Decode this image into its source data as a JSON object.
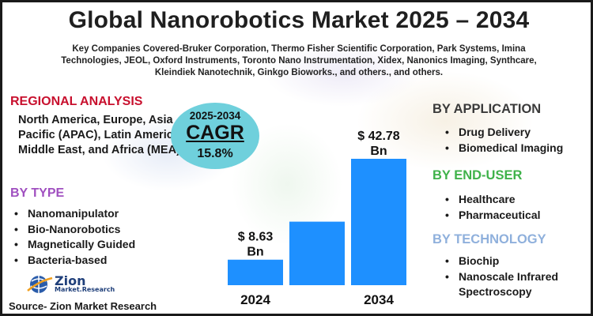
{
  "title": "Global Nanorobotics Market 2025 – 2034",
  "subtitle": "Key Companies Covered-Bruker Corporation, Thermo Fisher Scientific Corporation, Park Systems, Imina Technologies, JEOL, Oxford Instruments, Toronto Nano Instrumentation, Xidex, Nanonics Imaging, Synthcare, Kleindiek Nanotechnik, Ginkgo Bioworks., and others., and others.",
  "regional": {
    "title": "REGIONAL ANALYSIS",
    "body": "North America, Europe, Asia Pacific (APAC), Latin America, Middle East, and Africa (MEA)"
  },
  "by_type": {
    "title": "BY TYPE",
    "items": [
      "Nanomanipulator",
      "Bio-Nanorobotics",
      "Magnetically Guided",
      "Bacteria-based"
    ]
  },
  "by_application": {
    "title": "BY APPLICATION",
    "items": [
      "Drug Delivery",
      "Biomedical Imaging"
    ]
  },
  "by_end_user": {
    "title": "BY END-USER",
    "items": [
      "Healthcare",
      "Pharmaceutical"
    ]
  },
  "by_technology": {
    "title": "BY TECHNOLOGY",
    "items": [
      "Biochip",
      "Nanoscale Infrared Spectroscopy"
    ]
  },
  "cagr": {
    "years": "2025-2034",
    "label": "CAGR",
    "value": "15.8%"
  },
  "logo": {
    "name": "Zion",
    "sub": "Market.Research"
  },
  "source": "Source- Zion Market Research",
  "colors": {
    "bar": "#1e90ff",
    "regional_title": "#c8102e",
    "type_title": "#a050c0",
    "end_user_title": "#3fb24a",
    "technology_title": "#8fb0dc",
    "cagr_circle": "#6fd0dc"
  },
  "chart_data": {
    "type": "bar",
    "categories": [
      "2024",
      "",
      "2034"
    ],
    "values": [
      8.63,
      21.5,
      42.78
    ],
    "data_labels": [
      "$ 8.63 Bn",
      "",
      "$ 42.78 Bn"
    ],
    "unit": "USD Billion"
  }
}
